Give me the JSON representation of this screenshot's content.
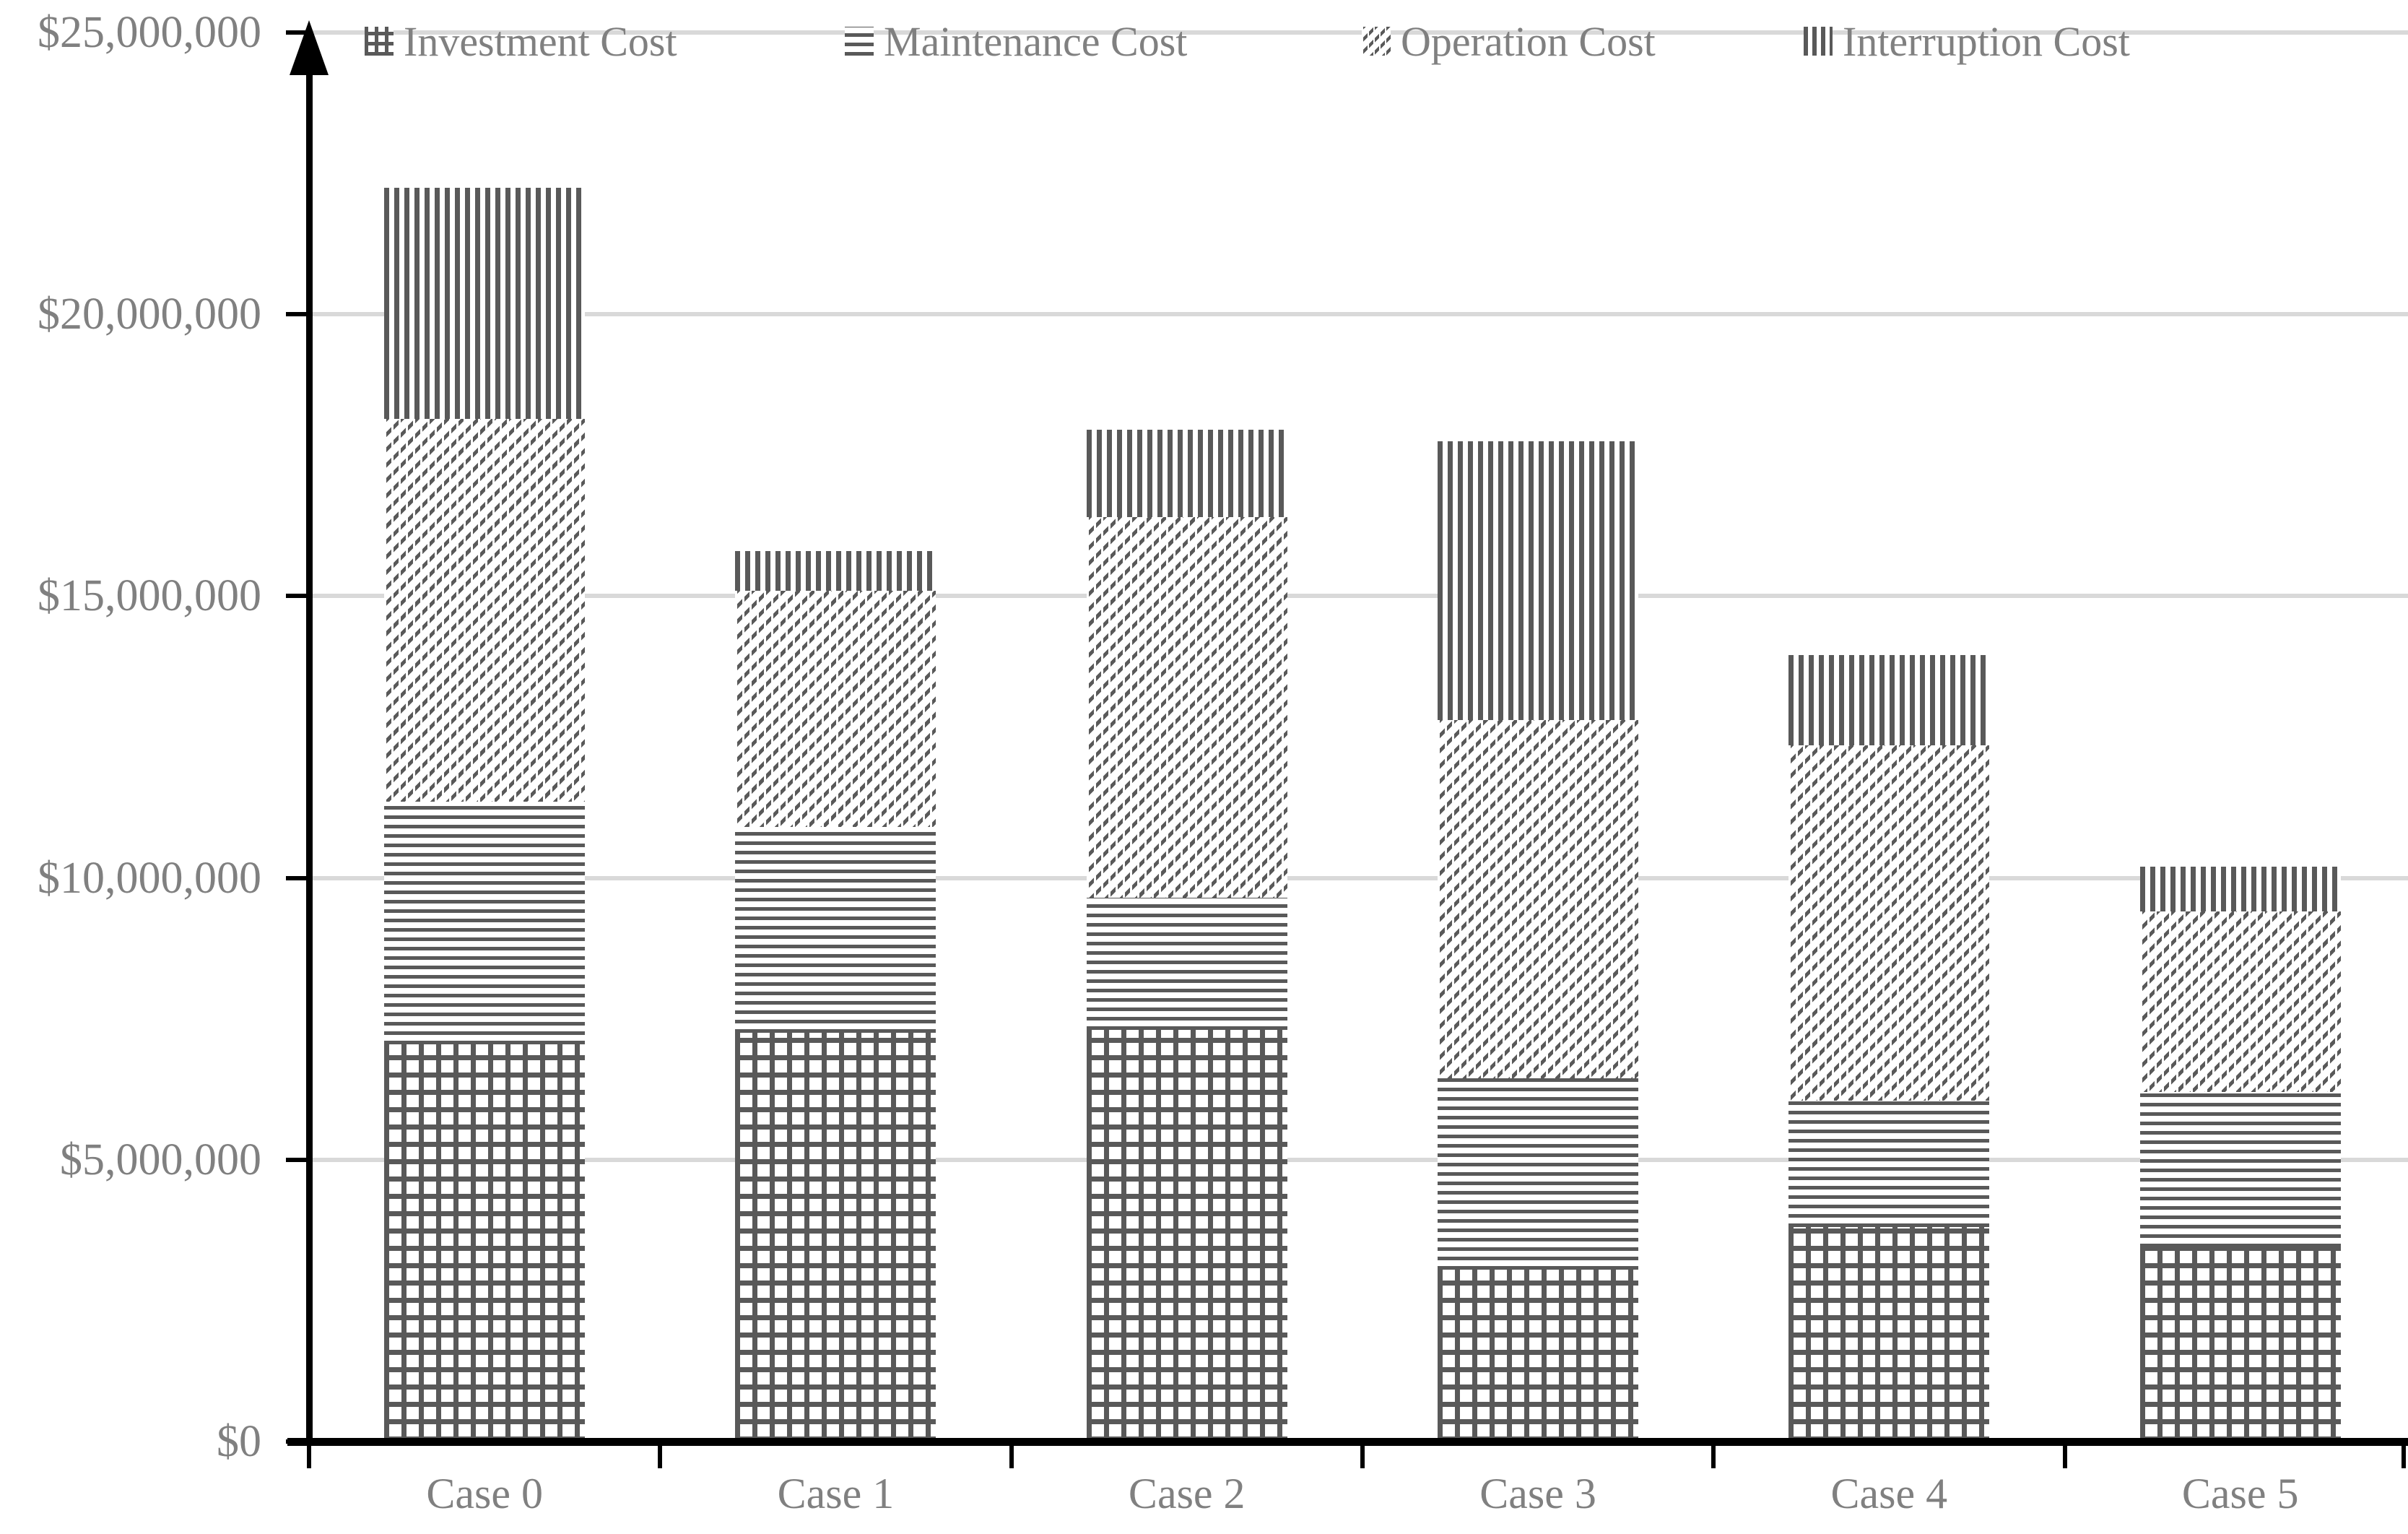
{
  "chart_data": {
    "type": "bar",
    "stacked": true,
    "categories": [
      "Case 0",
      "Case 1",
      "Case 2",
      "Case 3",
      "Case 4",
      "Case 5"
    ],
    "series": [
      {
        "name": "Investment Cost",
        "pattern": "grid-checker",
        "values": [
          7050000,
          7250000,
          7300000,
          3050000,
          3800000,
          3450000
        ]
      },
      {
        "name": "Maintenance Cost",
        "pattern": "horizontal-lines",
        "values": [
          4300000,
          3650000,
          2350000,
          3400000,
          2250000,
          2750000
        ]
      },
      {
        "name": "Operation Cost",
        "pattern": "diagonal-hatch",
        "values": [
          6800000,
          4200000,
          6750000,
          6350000,
          6300000,
          3200000
        ]
      },
      {
        "name": "Interruption Cost",
        "pattern": "vertical-lines",
        "values": [
          4100000,
          700000,
          1550000,
          4950000,
          1600000,
          800000
        ]
      }
    ],
    "y_axis": {
      "min": 0,
      "max": 25000000,
      "tick_interval": 5000000,
      "tick_labels": [
        "$0",
        "$5,000,000",
        "$10,000,000",
        "$15,000,000",
        "$20,000,000",
        "$25,000,000"
      ]
    },
    "x_axis": {
      "tick_labels": [
        "Case 0",
        "Case 1",
        "Case 2",
        "Case 3",
        "Case 4",
        "Case 5"
      ]
    },
    "legend": {
      "position": "top",
      "items": [
        {
          "label": "Investment Cost",
          "icon": "grid-pattern-swatch-icon"
        },
        {
          "label": "Maintenance Cost",
          "icon": "horizontal-lines-swatch-icon"
        },
        {
          "label": "Operation Cost",
          "icon": "diagonal-hatch-swatch-icon"
        },
        {
          "label": "Interruption Cost",
          "icon": "vertical-lines-swatch-icon"
        }
      ]
    },
    "grid": true,
    "legend_position": "top",
    "colors": {
      "pattern_foreground": "#595959",
      "bar_background": "#ffffff",
      "text": "#808080",
      "gridline": "#d9d9d9",
      "axis": "#000000",
      "background": "#ffffff"
    }
  }
}
